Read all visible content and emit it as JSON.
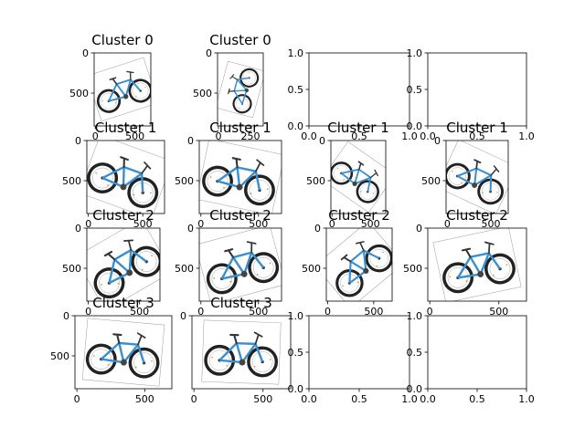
{
  "chart_data": [
    {
      "type": "image",
      "title": "Cluster 0",
      "xticks": [
        "0",
        "500"
      ],
      "yticks": [
        "0",
        "500"
      ],
      "image": "bicycle",
      "rotation": -18
    },
    {
      "type": "image",
      "title": "Cluster 0",
      "xticks": [
        "0",
        "250"
      ],
      "yticks": [
        "0",
        "500"
      ],
      "image": "bicycle",
      "rotation": -75
    },
    {
      "type": "empty",
      "title": "",
      "xticks": [
        "0.0",
        "0.5",
        "1.0"
      ],
      "yticks": [
        "0.0",
        "0.5",
        "1.0"
      ]
    },
    {
      "type": "empty",
      "title": "",
      "xticks": [
        "0.0",
        "0.5",
        "1.0"
      ],
      "yticks": [
        "0.0",
        "0.5",
        "1.0"
      ]
    },
    {
      "type": "image",
      "title": "Cluster 1",
      "xticks": [
        "0",
        "500"
      ],
      "yticks": [
        "0",
        "500"
      ],
      "image": "bicycle",
      "rotation": 20
    },
    {
      "type": "image",
      "title": "Cluster 1",
      "xticks": [
        "0",
        "500"
      ],
      "yticks": [
        "0",
        "500"
      ],
      "image": "bicycle",
      "rotation": 12
    },
    {
      "type": "image",
      "title": "Cluster 1",
      "xticks": [
        "0",
        "500"
      ],
      "yticks": [
        "0",
        "500"
      ],
      "image": "bicycle",
      "rotation": 35
    },
    {
      "type": "image",
      "title": "Cluster 1",
      "xticks": [
        "0",
        "500"
      ],
      "yticks": [
        "0",
        "500"
      ],
      "image": "bicycle",
      "rotation": 25
    },
    {
      "type": "image",
      "title": "Cluster 2",
      "xticks": [
        "0",
        "500"
      ],
      "yticks": [
        "0",
        "500"
      ],
      "image": "bicycle",
      "rotation": -30
    },
    {
      "type": "image",
      "title": "Cluster 2",
      "xticks": [
        "0",
        "500"
      ],
      "yticks": [
        "0",
        "500"
      ],
      "image": "bicycle",
      "rotation": -15
    },
    {
      "type": "image",
      "title": "Cluster 2",
      "xticks": [
        "0",
        "500"
      ],
      "yticks": [
        "0",
        "500"
      ],
      "image": "bicycle",
      "rotation": -40
    },
    {
      "type": "image",
      "title": "Cluster 2",
      "xticks": [
        "0",
        "500"
      ],
      "yticks": [
        "0",
        "500"
      ],
      "image": "bicycle",
      "rotation": -12
    },
    {
      "type": "image",
      "title": "Cluster 3",
      "xticks": [
        "0",
        "500"
      ],
      "yticks": [
        "0",
        "500"
      ],
      "image": "bicycle",
      "rotation": 5
    },
    {
      "type": "image",
      "title": "Cluster 3",
      "xticks": [
        "0",
        "500"
      ],
      "yticks": [
        "0"
      ],
      "image": "bicycle",
      "rotation": 2
    },
    {
      "type": "empty",
      "title": "",
      "xticks": [
        "0.0",
        "0.5",
        "1.0"
      ],
      "yticks": [
        "0.0",
        "0.5",
        "1.0"
      ]
    },
    {
      "type": "empty",
      "title": "",
      "xticks": [
        "0.0",
        "0.5",
        "1.0"
      ],
      "yticks": [
        "0.0",
        "0.5",
        "1.0"
      ]
    }
  ]
}
